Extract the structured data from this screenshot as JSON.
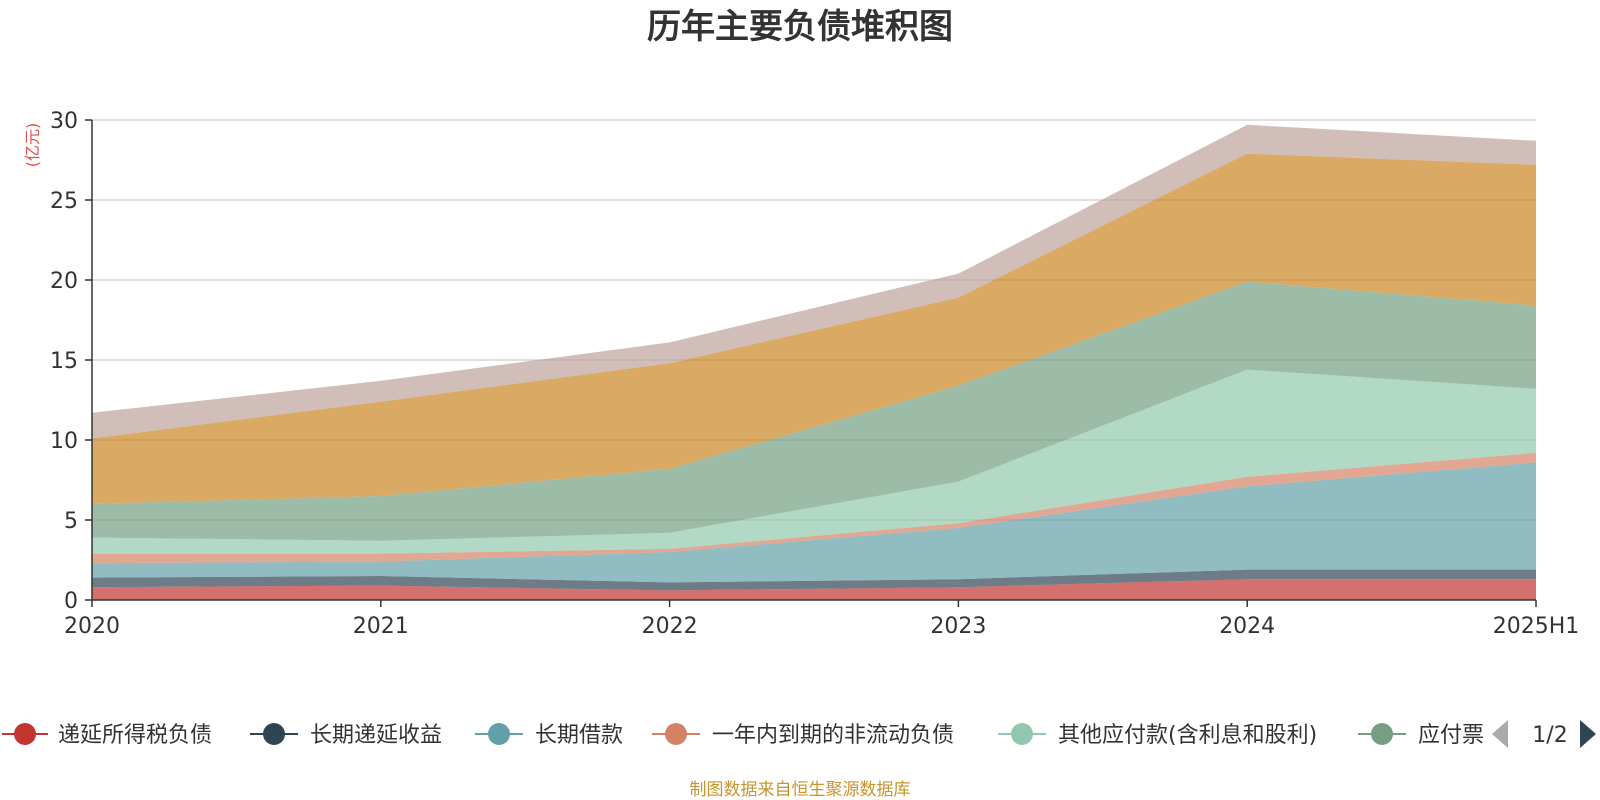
{
  "chart_data": {
    "type": "area",
    "stacked": true,
    "title": "历年主要负债堆积图",
    "ylabel": "(亿元)",
    "categories": [
      "2020",
      "2021",
      "2022",
      "2023",
      "2024",
      "2025H1"
    ],
    "ylim": [
      0,
      30
    ],
    "yticks": [
      0,
      5,
      10,
      15,
      20,
      25,
      30
    ],
    "grid": true,
    "series": [
      {
        "name": "递延所得税负债",
        "color": "#c23531",
        "values": [
          0.8,
          0.9,
          0.6,
          0.8,
          1.3,
          1.3
        ]
      },
      {
        "name": "长期递延收益",
        "color": "#2f4554",
        "values": [
          0.6,
          0.6,
          0.5,
          0.5,
          0.6,
          0.6
        ]
      },
      {
        "name": "长期借款",
        "color": "#61a0a8",
        "values": [
          0.9,
          0.9,
          1.9,
          3.2,
          5.2,
          6.7
        ]
      },
      {
        "name": "一年内到期的非流动负债",
        "color": "#d48265",
        "values": [
          0.6,
          0.5,
          0.2,
          0.3,
          0.6,
          0.6
        ]
      },
      {
        "name": "其他应付款(含利息和股利)",
        "color": "#91c7ae",
        "values": [
          1.0,
          0.8,
          1.0,
          2.6,
          6.7,
          4.0
        ]
      },
      {
        "name": "应付票据",
        "color": "#749f83",
        "values": [
          2.1,
          2.8,
          4.0,
          6.0,
          5.5,
          5.2
        ]
      },
      {
        "name": "",
        "color": "#ca8622",
        "values": [
          4.1,
          5.9,
          6.6,
          5.5,
          8.0,
          8.8
        ]
      },
      {
        "name": "",
        "color": "#bda29a",
        "values": [
          1.6,
          1.3,
          1.3,
          1.5,
          1.8,
          1.5
        ]
      }
    ]
  },
  "legend": {
    "items": [
      "递延所得税负债",
      "长期递延收益",
      "长期借款",
      "一年内到期的非流动负债",
      "其他应付款(含利息和股利)",
      "应付票"
    ],
    "page": "1/2",
    "prev_icon": "triangle-left",
    "next_icon": "triangle-right"
  },
  "source": "制图数据来自恒生聚源数据库"
}
